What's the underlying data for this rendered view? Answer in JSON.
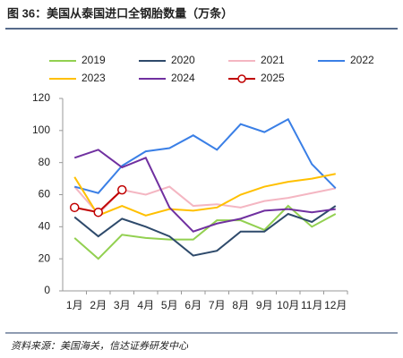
{
  "chart_data": {
    "type": "line",
    "title": "图 36：美国从泰国进口全钢胎数量（万条）",
    "source": "资料来源：美国海关，信达证券研发中心",
    "categories": [
      "1月",
      "2月",
      "3月",
      "4月",
      "5月",
      "6月",
      "7月",
      "8月",
      "9月",
      "10月",
      "11月",
      "12月"
    ],
    "series": [
      {
        "name": "2019",
        "color": "#92d050",
        "values": [
          33,
          20,
          35,
          33,
          32,
          32,
          44,
          44,
          38,
          53,
          40,
          48
        ]
      },
      {
        "name": "2020",
        "color": "#2e4a6b",
        "values": [
          46,
          34,
          45,
          40,
          34,
          22,
          25,
          37,
          37,
          48,
          43,
          53
        ]
      },
      {
        "name": "2021",
        "color": "#f4b6c2",
        "values": [
          65,
          48,
          63,
          60,
          65,
          53,
          54,
          52,
          56,
          58,
          61,
          64
        ]
      },
      {
        "name": "2022",
        "color": "#3a7fe6",
        "values": [
          65,
          61,
          78,
          87,
          89,
          97,
          88,
          104,
          99,
          107,
          79,
          64
        ]
      },
      {
        "name": "2023",
        "color": "#ffc000",
        "values": [
          71,
          47,
          53,
          47,
          51,
          50,
          52,
          60,
          65,
          68,
          70,
          73
        ]
      },
      {
        "name": "2024",
        "color": "#7030a0",
        "values": [
          83,
          88,
          77,
          83,
          52,
          37,
          42,
          45,
          50,
          51,
          49,
          51
        ]
      },
      {
        "name": "2025",
        "color": "#c00000",
        "marker": "circle",
        "values": [
          52,
          49,
          63,
          null,
          null,
          null,
          null,
          null,
          null,
          null,
          null,
          null
        ]
      }
    ],
    "ylim": [
      0,
      120
    ],
    "yticks": [
      0,
      20,
      40,
      60,
      80,
      100,
      120
    ],
    "grid": false
  }
}
